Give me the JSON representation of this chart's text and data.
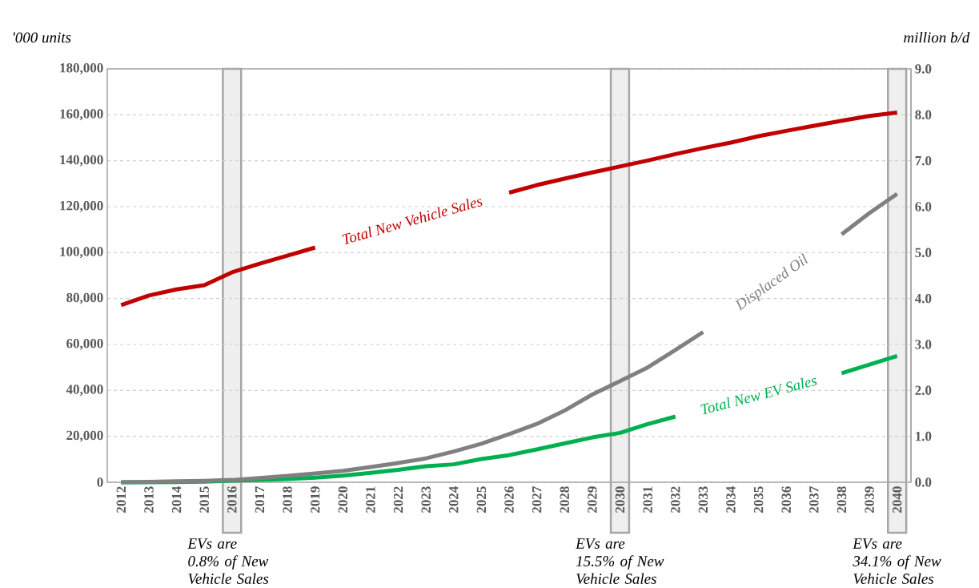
{
  "chart_data": {
    "type": "line",
    "ylabel": "'000 units",
    "y2label": "million b/d",
    "x": [
      2012,
      2013,
      2014,
      2015,
      2016,
      2017,
      2018,
      2019,
      2020,
      2021,
      2022,
      2023,
      2024,
      2025,
      2026,
      2027,
      2028,
      2029,
      2030,
      2031,
      2032,
      2033,
      2034,
      2035,
      2036,
      2037,
      2038,
      2039,
      2040
    ],
    "xlim": [
      2011.5,
      2040.5
    ],
    "xticks": [
      2012,
      2013,
      2014,
      2015,
      2016,
      2017,
      2018,
      2019,
      2020,
      2021,
      2022,
      2023,
      2024,
      2025,
      2026,
      2027,
      2028,
      2029,
      2030,
      2031,
      2032,
      2033,
      2034,
      2035,
      2036,
      2037,
      2038,
      2039,
      2040
    ],
    "series": [
      {
        "name": "Total New Vehicle Sales",
        "color": "#c00000",
        "values": [
          77100,
          81300,
          84000,
          85800,
          91400,
          95200,
          98700,
          102200,
          null,
          null,
          null,
          null,
          null,
          null,
          126100,
          129400,
          132200,
          134900,
          137500,
          140100,
          142900,
          145500,
          147900,
          150700,
          153000,
          155200,
          157400,
          159500,
          161000
        ]
      },
      {
        "name": "Total New EV Sales",
        "color": "#00b050",
        "values": [
          0,
          0,
          100,
          300,
          700,
          1000,
          1400,
          2000,
          2900,
          4100,
          5400,
          7000,
          7800,
          10100,
          11800,
          14300,
          16900,
          19500,
          21500,
          25300,
          28600,
          null,
          null,
          null,
          null,
          null,
          47500,
          51200,
          55000
        ]
      },
      {
        "name": "Displaced Oil",
        "color": "#808080",
        "axis": "y2",
        "values": [
          0,
          0.01,
          0.02,
          0.03,
          0.05,
          0.09,
          0.14,
          0.19,
          0.25,
          0.33,
          0.42,
          0.52,
          0.67,
          0.84,
          1.05,
          1.27,
          1.56,
          1.91,
          2.2,
          2.5,
          2.88,
          3.27,
          null,
          null,
          null,
          null,
          5.4,
          5.86,
          6.28
        ]
      }
    ],
    "ylim": [
      0,
      180000
    ],
    "yticks": [
      0,
      {
        "value": 20000,
        "label": "20,000"
      },
      {
        "value": 40000,
        "label": "40,000"
      },
      {
        "value": 60000,
        "label": "60,000"
      },
      {
        "value": 80000,
        "label": "80,000"
      },
      {
        "value": 100000,
        "label": "100,000"
      },
      {
        "value": 120000,
        "label": "120,000"
      },
      {
        "value": 140000,
        "label": "140,000"
      },
      {
        "value": 160000,
        "label": "160,000"
      },
      {
        "value": 180000,
        "label": "180,000"
      }
    ],
    "y2lim": [
      0,
      9
    ],
    "y2ticks": [
      {
        "value": 0,
        "label": "0.0"
      },
      {
        "value": 1,
        "label": "1.0"
      },
      {
        "value": 2,
        "label": "2.0"
      },
      {
        "value": 3,
        "label": "3.0"
      },
      {
        "value": 4,
        "label": "4.0"
      },
      {
        "value": 5,
        "label": "5.0"
      },
      {
        "value": 6,
        "label": "6.0"
      },
      {
        "value": 7,
        "label": "7.0"
      },
      {
        "value": 8,
        "label": "8.0"
      },
      {
        "value": 9,
        "label": "9.0"
      }
    ],
    "grid": "y",
    "bands": [
      {
        "axis": "x",
        "from": 2015.67,
        "to": 2016.33,
        "label": "EVs are 0.8% of New Vehicle Sales",
        "color": "#efefef"
      },
      {
        "axis": "x",
        "from": 2029.67,
        "to": 2030.33,
        "label": "EVs are 15.5% of New Vehicle Sales",
        "color": "#efefef"
      },
      {
        "axis": "x",
        "from": 2039.67,
        "to": 2040.33,
        "label": "EVs are 34.1% of New Vehicle Sales",
        "color": "#efefef"
      }
    ]
  }
}
